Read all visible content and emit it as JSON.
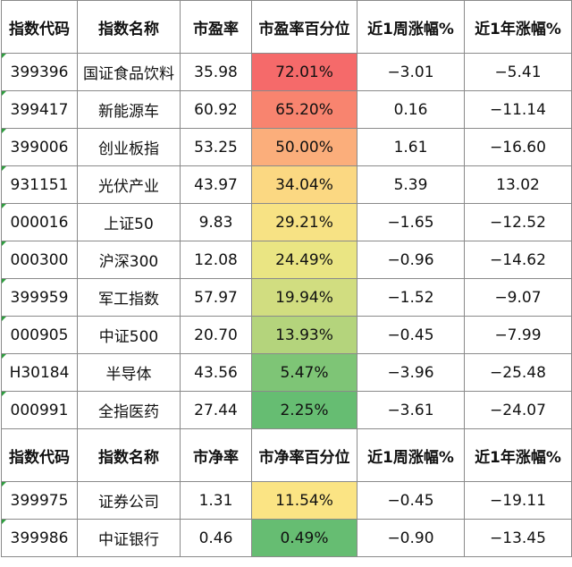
{
  "pe_table": {
    "headers": [
      "指数代码",
      "指数名称",
      "市盈率",
      "市盈率百分位",
      "近1周涨幅%",
      "近1年涨幅%"
    ],
    "rows": [
      {
        "code": "399396",
        "name": "国证食品饮料",
        "ratio": "35.98",
        "percentile": "72.01%",
        "week": "−3.01",
        "year": "−5.41",
        "fill": "#f56a6a"
      },
      {
        "code": "399417",
        "name": "新能源车",
        "ratio": "60.92",
        "percentile": "65.20%",
        "week": "0.16",
        "year": "−11.14",
        "fill": "#f8846f"
      },
      {
        "code": "399006",
        "name": "创业板指",
        "ratio": "53.25",
        "percentile": "50.00%",
        "week": "1.61",
        "year": "−16.60",
        "fill": "#fbae7b"
      },
      {
        "code": "931151",
        "name": "光伏产业",
        "ratio": "43.97",
        "percentile": "34.04%",
        "week": "5.39",
        "year": "13.02",
        "fill": "#fbd882"
      },
      {
        "code": "000016",
        "name": "上证50",
        "ratio": "9.83",
        "percentile": "29.21%",
        "week": "−1.65",
        "year": "−12.52",
        "fill": "#f7e284"
      },
      {
        "code": "000300",
        "name": "沪深300",
        "ratio": "12.08",
        "percentile": "24.49%",
        "week": "−0.96",
        "year": "−14.62",
        "fill": "#eae583"
      },
      {
        "code": "399959",
        "name": "军工指数",
        "ratio": "57.97",
        "percentile": "19.94%",
        "week": "−1.52",
        "year": "−9.07",
        "fill": "#d1dd80"
      },
      {
        "code": "000905",
        "name": "中证500",
        "ratio": "20.70",
        "percentile": "13.93%",
        "week": "−0.45",
        "year": "−7.99",
        "fill": "#b4d47c"
      },
      {
        "code": "H30184",
        "name": "半导体",
        "ratio": "43.56",
        "percentile": "5.47%",
        "week": "−3.96",
        "year": "−25.48",
        "fill": "#7ec576"
      },
      {
        "code": "000991",
        "name": "全指医药",
        "ratio": "27.44",
        "percentile": "2.25%",
        "week": "−3.61",
        "year": "−24.07",
        "fill": "#66bd72"
      }
    ]
  },
  "pb_table": {
    "headers": [
      "指数代码",
      "指数名称",
      "市净率",
      "市净率百分位",
      "近1周涨幅%",
      "近1年涨幅%"
    ],
    "rows": [
      {
        "code": "399975",
        "name": "证券公司",
        "ratio": "1.31",
        "percentile": "11.54%",
        "week": "−0.45",
        "year": "−19.11",
        "fill": "#fbe484"
      },
      {
        "code": "399986",
        "name": "中证银行",
        "ratio": "0.46",
        "percentile": "0.49%",
        "week": "−0.90",
        "year": "−13.45",
        "fill": "#66bd72"
      }
    ]
  }
}
